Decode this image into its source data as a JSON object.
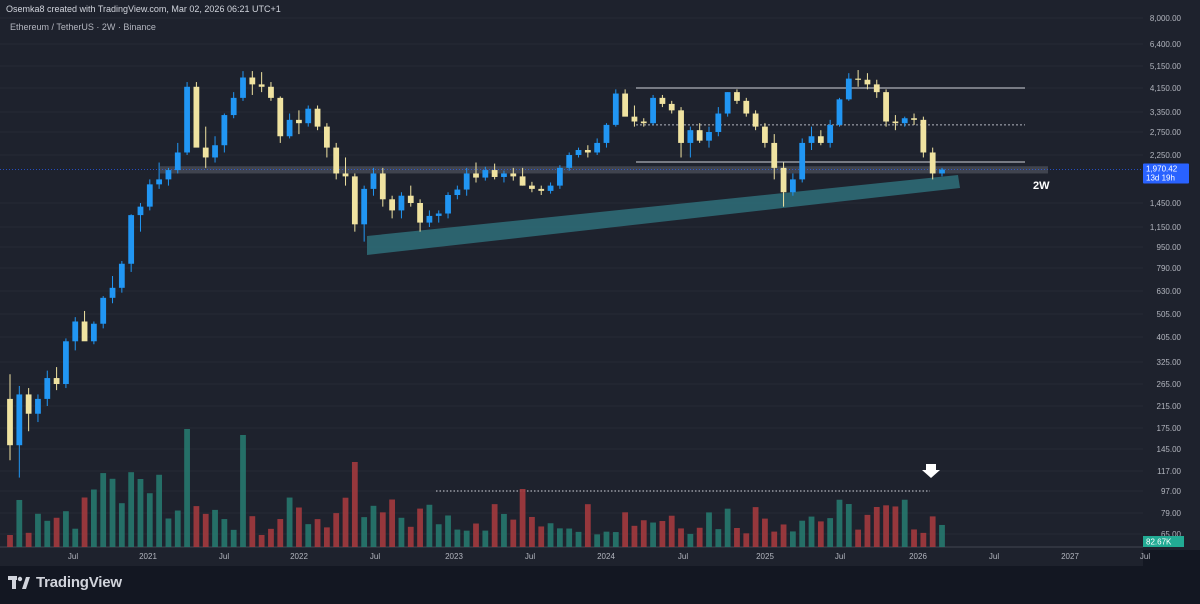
{
  "header": {
    "credit": "Osemka8 created with TradingView.com, Mar 02, 2026 06:21 UTC+1",
    "symbol": "Ethereum / TetherUS · 2W · Binance"
  },
  "brand": {
    "name": "TradingView",
    "icon": "tradingview-logo-icon"
  },
  "annotations": {
    "timeframe_label": "2W",
    "arrow": "down-arrow-icon"
  },
  "price_badge": {
    "price": "1,970.42",
    "countdown": "13d 19h"
  },
  "volume_badge": {
    "value": "82.67K"
  },
  "colors": {
    "background": "#1e222d",
    "bull": "#2196f3",
    "bear": "#f0e3a1",
    "vol_up": "#26786e",
    "vol_down": "#a33a3e",
    "zone": "#2f6f7a",
    "badge": "#2962ff",
    "vol_badge": "#22ab94"
  },
  "chart_data": {
    "type": "candlestick",
    "y_scale": "log",
    "y_ticks": [
      "8,000.00",
      "6,400.00",
      "5,150.00",
      "4,150.00",
      "3,350.00",
      "2,750.00",
      "2,250.00",
      "1,450.00",
      "1,150.00",
      "950.00",
      "790.00",
      "630.00",
      "505.00",
      "405.00",
      "325.00",
      "265.00",
      "215.00",
      "175.00",
      "145.00",
      "117.00",
      "97.00",
      "79.00",
      "65.00"
    ],
    "x_ticks": [
      "Jul",
      "2021",
      "Jul",
      "2022",
      "Jul",
      "2023",
      "Jul",
      "2024",
      "Jul",
      "2025",
      "Jul",
      "2026",
      "Jul",
      "2027",
      "Jul"
    ],
    "last_price": 1970.42,
    "horizontal_levels": [
      4150,
      2950,
      2110
    ],
    "support_band": [
      1900,
      2030
    ],
    "candles_approx": [
      [
        230,
        290,
        130,
        150
      ],
      [
        150,
        260,
        110,
        240
      ],
      [
        240,
        255,
        170,
        200
      ],
      [
        200,
        240,
        185,
        230
      ],
      [
        230,
        300,
        215,
        280
      ],
      [
        280,
        310,
        250,
        265
      ],
      [
        265,
        400,
        255,
        390
      ],
      [
        390,
        490,
        360,
        470
      ],
      [
        470,
        520,
        440,
        390
      ],
      [
        390,
        470,
        380,
        460
      ],
      [
        460,
        600,
        440,
        590
      ],
      [
        590,
        730,
        560,
        650
      ],
      [
        650,
        840,
        620,
        820
      ],
      [
        820,
        1300,
        760,
        1290
      ],
      [
        1290,
        1450,
        1100,
        1400
      ],
      [
        1400,
        1800,
        1350,
        1720
      ],
      [
        1720,
        2100,
        1650,
        1800
      ],
      [
        1800,
        2000,
        1700,
        1960
      ],
      [
        1960,
        2500,
        1900,
        2300
      ],
      [
        2300,
        4400,
        2250,
        4200
      ],
      [
        4200,
        4400,
        2700,
        2400
      ],
      [
        2400,
        2900,
        2000,
        2200
      ],
      [
        2200,
        2650,
        2100,
        2450
      ],
      [
        2450,
        3300,
        2300,
        3250
      ],
      [
        3250,
        4000,
        3150,
        3800
      ],
      [
        3800,
        4900,
        3700,
        4600
      ],
      [
        4600,
        4900,
        3900,
        4300
      ],
      [
        4300,
        4850,
        4000,
        4200
      ],
      [
        4200,
        4400,
        3700,
        3800
      ],
      [
        3800,
        3850,
        2500,
        2650
      ],
      [
        2650,
        3300,
        2600,
        3100
      ],
      [
        3100,
        3400,
        2700,
        3000
      ],
      [
        3000,
        3550,
        2900,
        3450
      ],
      [
        3450,
        3550,
        2800,
        2900
      ],
      [
        2900,
        3000,
        2200,
        2400
      ],
      [
        2400,
        2500,
        1800,
        1900
      ],
      [
        1900,
        2200,
        1700,
        1850
      ],
      [
        1850,
        1900,
        1100,
        1180
      ],
      [
        1180,
        1700,
        1000,
        1650
      ],
      [
        1650,
        2000,
        1550,
        1900
      ],
      [
        1900,
        2000,
        1400,
        1500
      ],
      [
        1500,
        1550,
        1250,
        1350
      ],
      [
        1350,
        1600,
        1250,
        1550
      ],
      [
        1550,
        1700,
        1400,
        1450
      ],
      [
        1450,
        1500,
        1100,
        1200
      ],
      [
        1200,
        1350,
        1150,
        1280
      ],
      [
        1280,
        1350,
        1200,
        1310
      ],
      [
        1310,
        1600,
        1250,
        1560
      ],
      [
        1560,
        1700,
        1500,
        1640
      ],
      [
        1640,
        2000,
        1550,
        1900
      ],
      [
        1900,
        2100,
        1750,
        1830
      ],
      [
        1830,
        2020,
        1780,
        1960
      ],
      [
        1960,
        2080,
        1800,
        1840
      ],
      [
        1840,
        1950,
        1750,
        1900
      ],
      [
        1900,
        2000,
        1780,
        1850
      ],
      [
        1850,
        2000,
        1700,
        1700
      ],
      [
        1700,
        1760,
        1600,
        1650
      ],
      [
        1650,
        1700,
        1560,
        1620
      ],
      [
        1620,
        1750,
        1580,
        1700
      ],
      [
        1700,
        2050,
        1650,
        2000
      ],
      [
        2000,
        2300,
        1950,
        2250
      ],
      [
        2250,
        2400,
        2200,
        2350
      ],
      [
        2350,
        2450,
        2200,
        2300
      ],
      [
        2300,
        2600,
        2250,
        2500
      ],
      [
        2500,
        3000,
        2400,
        2950
      ],
      [
        2950,
        4100,
        2900,
        3950
      ],
      [
        3950,
        4100,
        3500,
        3200
      ],
      [
        3200,
        3550,
        2900,
        3050
      ],
      [
        3050,
        3150,
        2900,
        3000
      ],
      [
        3000,
        3900,
        2950,
        3800
      ],
      [
        3800,
        3900,
        3500,
        3600
      ],
      [
        3600,
        3700,
        3300,
        3400
      ],
      [
        3400,
        3500,
        2200,
        2500
      ],
      [
        2500,
        2900,
        2200,
        2800
      ],
      [
        2800,
        3000,
        2500,
        2550
      ],
      [
        2550,
        2900,
        2400,
        2750
      ],
      [
        2750,
        3500,
        2650,
        3300
      ],
      [
        3300,
        4000,
        3200,
        4000
      ],
      [
        4000,
        4100,
        3600,
        3700
      ],
      [
        3700,
        3800,
        3200,
        3300
      ],
      [
        3300,
        3400,
        2800,
        2900
      ],
      [
        2900,
        3000,
        2400,
        2500
      ],
      [
        2500,
        2700,
        1800,
        2000
      ],
      [
        2000,
        2100,
        1400,
        1600
      ],
      [
        1600,
        1900,
        1550,
        1800
      ],
      [
        1800,
        2600,
        1750,
        2500
      ],
      [
        2500,
        2900,
        2350,
        2650
      ],
      [
        2650,
        2800,
        2450,
        2500
      ],
      [
        2500,
        3100,
        2400,
        2950
      ],
      [
        2950,
        3800,
        2900,
        3750
      ],
      [
        3750,
        4800,
        3700,
        4550
      ],
      [
        4550,
        4950,
        4200,
        4500
      ],
      [
        4500,
        4800,
        4100,
        4300
      ],
      [
        4300,
        4500,
        3800,
        4000
      ],
      [
        4000,
        4100,
        2900,
        3050
      ],
      [
        3050,
        3250,
        2800,
        3000
      ],
      [
        3000,
        3200,
        2900,
        3150
      ],
      [
        3150,
        3300,
        2950,
        3100
      ],
      [
        3100,
        3200,
        2200,
        2300
      ],
      [
        2300,
        2400,
        1800,
        1900
      ],
      [
        1900,
        2000,
        1850,
        1970
      ]
    ]
  }
}
